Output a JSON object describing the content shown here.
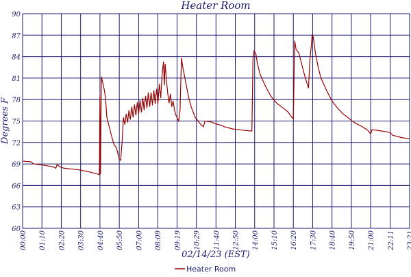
{
  "chart_data": {
    "type": "line",
    "title": "Heater Room",
    "x_label": "02/14/23 (EST)",
    "y_label": "Degrees F",
    "xlim": [
      0,
      1401
    ],
    "ylim": [
      60,
      90
    ],
    "xticks": [
      {
        "value": 0,
        "label": "00:00"
      },
      {
        "value": 70,
        "label": "01:10"
      },
      {
        "value": 140,
        "label": "02:20"
      },
      {
        "value": 210,
        "label": "03:30"
      },
      {
        "value": 280,
        "label": "04:40"
      },
      {
        "value": 350,
        "label": "05:50"
      },
      {
        "value": 420,
        "label": "07:00"
      },
      {
        "value": 489,
        "label": "08:09"
      },
      {
        "value": 559,
        "label": "09:19"
      },
      {
        "value": 629,
        "label": "10:29"
      },
      {
        "value": 700,
        "label": "11:40"
      },
      {
        "value": 770,
        "label": "12:50"
      },
      {
        "value": 840,
        "label": "14:00"
      },
      {
        "value": 910,
        "label": "15:10"
      },
      {
        "value": 980,
        "label": "16:20"
      },
      {
        "value": 1050,
        "label": "17:30"
      },
      {
        "value": 1120,
        "label": "18:40"
      },
      {
        "value": 1190,
        "label": "19:50"
      },
      {
        "value": 1260,
        "label": "21:00"
      },
      {
        "value": 1331,
        "label": "22:11"
      },
      {
        "value": 1401,
        "label": "23:21"
      }
    ],
    "yticks": [
      60,
      63,
      66,
      69,
      72,
      75,
      78,
      81,
      84,
      87,
      90
    ],
    "grid": true,
    "x": [
      0,
      30,
      40,
      80,
      110,
      120,
      125,
      135,
      150,
      200,
      240,
      270,
      278,
      280,
      282,
      285,
      295,
      300,
      305,
      320,
      330,
      340,
      350,
      355,
      360,
      365,
      370,
      375,
      380,
      385,
      390,
      395,
      400,
      405,
      410,
      415,
      420,
      425,
      430,
      435,
      440,
      445,
      450,
      455,
      460,
      465,
      470,
      475,
      480,
      485,
      490,
      495,
      500,
      505,
      510,
      513,
      516,
      520,
      525,
      530,
      535,
      540,
      545,
      550,
      555,
      565,
      570,
      575,
      580,
      590,
      600,
      610,
      625,
      645,
      655,
      660,
      680,
      700,
      720,
      730,
      760,
      800,
      830,
      834,
      838,
      845,
      850,
      860,
      880,
      900,
      920,
      940,
      960,
      975,
      980,
      983,
      985,
      990,
      1000,
      1010,
      1020,
      1030,
      1035,
      1040,
      1045,
      1048,
      1052,
      1060,
      1070,
      1080,
      1100,
      1120,
      1140,
      1160,
      1180,
      1200,
      1230,
      1250,
      1260,
      1265,
      1300,
      1330,
      1340,
      1370,
      1401
    ],
    "series": [
      {
        "name": "Heater Room",
        "color": "#990000",
        "values": [
          69.4,
          69.3,
          69.0,
          68.8,
          68.6,
          68.4,
          68.9,
          68.6,
          68.4,
          68.2,
          67.9,
          67.6,
          67.5,
          78.5,
          67.6,
          81.2,
          79.5,
          78.3,
          75.5,
          73.2,
          71.8,
          71.2,
          69.7,
          69.5,
          72,
          75.5,
          74.5,
          76,
          74.8,
          76.5,
          75.2,
          77,
          75.5,
          77.3,
          75.8,
          77.6,
          76,
          77.9,
          76.2,
          78.2,
          76.5,
          78.5,
          76.8,
          79,
          77,
          79,
          77.2,
          79.3,
          77.4,
          79.5,
          77.5,
          80.2,
          78.2,
          81.5,
          83.3,
          80,
          83,
          81,
          79,
          77.5,
          78.8,
          77,
          77.8,
          76.5,
          75.8,
          75,
          76.5,
          83.8,
          82.5,
          80.5,
          78.5,
          77,
          75.5,
          74.5,
          74.2,
          75,
          74.9,
          74.6,
          74.4,
          74.2,
          73.9,
          73.7,
          73.6,
          83.8,
          84.8,
          84.3,
          83,
          81.5,
          79.8,
          78.4,
          77.5,
          76.9,
          76.3,
          75.5,
          75.3,
          82,
          86.2,
          85,
          84.5,
          83,
          81.5,
          80.2,
          79.6,
          83.5,
          85.5,
          87,
          86.8,
          84.5,
          82.5,
          81,
          79.3,
          77.8,
          76.8,
          76,
          75.4,
          74.8,
          74.2,
          73.7,
          73.2,
          73.8,
          73.6,
          73.4,
          73.0,
          72.7,
          72.5
        ]
      }
    ]
  }
}
